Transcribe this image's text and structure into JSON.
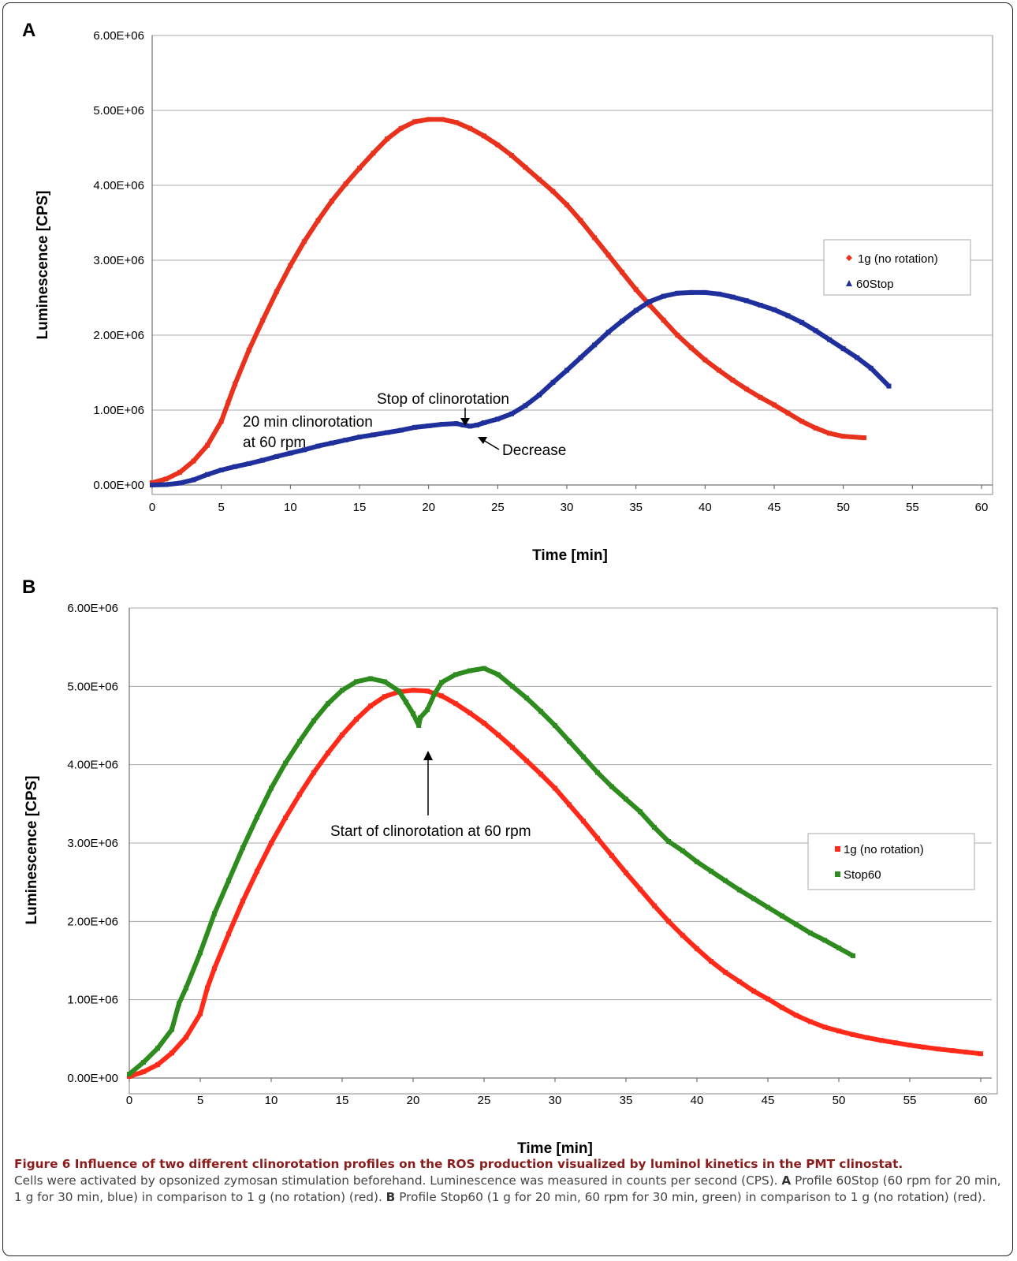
{
  "figure": {
    "caption_title": "Figure 6 Influence of two different clinorotation profiles on the ROS production visualized by luminol kinetics in the PMT clinostat.",
    "caption_p1": "Cells were activated by opsonized zymosan stimulation beforehand. Luminescence was measured in counts per second (CPS). ",
    "caption_a_label": "A",
    "caption_a_text": " Profile 60Stop (60 rpm for 20 min, 1 g for 30 min, blue) in comparison to 1 g (no rotation) (red). ",
    "caption_b_label": "B",
    "caption_b_text": " Profile Stop60 (1 g for 20 min, 60 rpm for 30 min, green) in comparison to 1 g (no rotation) (red)."
  },
  "chart_data": [
    {
      "panel": "A",
      "type": "scatter",
      "xlabel": "Time [min]",
      "ylabel": "Luminescence [CPS]",
      "xlim": [
        0,
        60
      ],
      "ylim": [
        0,
        6000000
      ],
      "xticks": [
        "0",
        "5",
        "10",
        "15",
        "20",
        "25",
        "30",
        "35",
        "40",
        "45",
        "50",
        "55",
        "60"
      ],
      "yticks": [
        "0.00E+00",
        "1.00E+06",
        "2.00E+06",
        "3.00E+06",
        "4.00E+06",
        "5.00E+06",
        "6.00E+06"
      ],
      "grid": "horizontal",
      "legend_position": "right",
      "series": [
        {
          "name": "1g (no rotation)",
          "color": "#e8321e",
          "marker": "diamond",
          "x": [
            0,
            1,
            2,
            3,
            4,
            5,
            5.5,
            6,
            7,
            8,
            9,
            10,
            11,
            12,
            13,
            14,
            15,
            16,
            17,
            18,
            19,
            20,
            21,
            22,
            23,
            24,
            25,
            26,
            27,
            28,
            29,
            30,
            31,
            32,
            33,
            34,
            35,
            36,
            37,
            38,
            39,
            40,
            41,
            42,
            43,
            44,
            45,
            46,
            47,
            48,
            49,
            50,
            51.5
          ],
          "y": [
            30000,
            80000,
            170000,
            320000,
            530000,
            850000,
            1100000,
            1350000,
            1800000,
            2200000,
            2580000,
            2930000,
            3250000,
            3530000,
            3790000,
            4020000,
            4230000,
            4430000,
            4620000,
            4760000,
            4850000,
            4880000,
            4880000,
            4840000,
            4760000,
            4660000,
            4540000,
            4400000,
            4240000,
            4080000,
            3920000,
            3740000,
            3530000,
            3300000,
            3070000,
            2840000,
            2610000,
            2400000,
            2200000,
            2000000,
            1830000,
            1670000,
            1530000,
            1400000,
            1280000,
            1170000,
            1070000,
            960000,
            850000,
            760000,
            690000,
            650000,
            630000
          ]
        },
        {
          "name": "60Stop",
          "color": "#1f2f9c",
          "marker": "triangle",
          "x": [
            0,
            1,
            2,
            3,
            4,
            5,
            6,
            7,
            8,
            9,
            10,
            11,
            12,
            13,
            14,
            15,
            16,
            17,
            18,
            19,
            20,
            21,
            22,
            22.5,
            23,
            23.5,
            24,
            25,
            26,
            27,
            28,
            29,
            30,
            31,
            32,
            33,
            34,
            35,
            36,
            37,
            38,
            39,
            40,
            41,
            42,
            43,
            44,
            45,
            46,
            47,
            48,
            49,
            50,
            51,
            52,
            53.3
          ],
          "y": [
            0,
            5000,
            25000,
            70000,
            140000,
            200000,
            245000,
            285000,
            330000,
            380000,
            425000,
            470000,
            520000,
            560000,
            600000,
            640000,
            670000,
            700000,
            730000,
            770000,
            790000,
            810000,
            820000,
            800000,
            785000,
            800000,
            830000,
            880000,
            950000,
            1060000,
            1200000,
            1370000,
            1530000,
            1700000,
            1870000,
            2040000,
            2190000,
            2330000,
            2450000,
            2520000,
            2560000,
            2570000,
            2570000,
            2550000,
            2510000,
            2460000,
            2400000,
            2340000,
            2260000,
            2170000,
            2060000,
            1940000,
            1820000,
            1700000,
            1560000,
            1320000
          ]
        }
      ],
      "annotations": {
        "clino_line1": "20 min clinorotation",
        "clino_line2": "at 60 rpm",
        "stop": "Stop of clinorotation",
        "decrease": "Decrease"
      }
    },
    {
      "panel": "B",
      "type": "scatter",
      "xlabel": "Time [min]",
      "ylabel": "Luminescence  [CPS]",
      "xlim": [
        0,
        60
      ],
      "ylim": [
        0,
        6000000
      ],
      "xticks": [
        "0",
        "5",
        "10",
        "15",
        "20",
        "25",
        "30",
        "35",
        "40",
        "45",
        "50",
        "55",
        "60"
      ],
      "yticks": [
        "0.00E+00",
        "1.00E+06",
        "2.00E+06",
        "3.00E+06",
        "4.00E+06",
        "5.00E+06",
        "6.00E+06"
      ],
      "grid": "horizontal",
      "legend_position": "right",
      "series": [
        {
          "name": "1g (no rotation)",
          "color": "#ff2a1a",
          "marker": "square",
          "x": [
            0,
            1,
            2,
            3,
            4,
            5,
            5.5,
            6,
            7,
            8,
            9,
            10,
            11,
            12,
            13,
            14,
            15,
            16,
            17,
            18,
            19,
            20,
            21,
            22,
            23,
            24,
            25,
            26,
            27,
            28,
            29,
            30,
            31,
            32,
            33,
            34,
            35,
            36,
            37,
            38,
            39,
            40,
            41,
            42,
            43,
            44,
            45,
            46,
            47,
            48,
            49,
            50,
            51,
            52,
            53,
            54,
            55,
            56,
            57,
            58,
            59,
            60
          ],
          "y": [
            20000,
            80000,
            170000,
            320000,
            520000,
            820000,
            1150000,
            1400000,
            1840000,
            2260000,
            2640000,
            3000000,
            3320000,
            3620000,
            3900000,
            4150000,
            4380000,
            4580000,
            4750000,
            4870000,
            4930000,
            4950000,
            4940000,
            4880000,
            4780000,
            4660000,
            4530000,
            4380000,
            4220000,
            4050000,
            3880000,
            3700000,
            3490000,
            3280000,
            3060000,
            2840000,
            2620000,
            2410000,
            2200000,
            2000000,
            1820000,
            1650000,
            1490000,
            1350000,
            1230000,
            1110000,
            1010000,
            900000,
            800000,
            720000,
            650000,
            600000,
            555000,
            515000,
            480000,
            450000,
            420000,
            395000,
            370000,
            350000,
            330000,
            310000
          ]
        },
        {
          "name": "Stop60",
          "color": "#2e8b1e",
          "marker": "square",
          "x": [
            0,
            1,
            2,
            3,
            3.5,
            4,
            5,
            6,
            7,
            8,
            9,
            10,
            11,
            12,
            13,
            14,
            15,
            16,
            17,
            18,
            19,
            19.5,
            20,
            20.4,
            20.5,
            21,
            21.5,
            22,
            23,
            24,
            25,
            26,
            27,
            28,
            29,
            30,
            31,
            32,
            33,
            34,
            35,
            36,
            37,
            38,
            39,
            40,
            41,
            42,
            43,
            44,
            45,
            46,
            47,
            48,
            49,
            50,
            51
          ],
          "y": [
            50000,
            200000,
            380000,
            620000,
            950000,
            1150000,
            1600000,
            2100000,
            2520000,
            2940000,
            3330000,
            3700000,
            4020000,
            4300000,
            4560000,
            4780000,
            4950000,
            5060000,
            5100000,
            5060000,
            4940000,
            4800000,
            4650000,
            4500000,
            4600000,
            4700000,
            4900000,
            5050000,
            5150000,
            5200000,
            5230000,
            5150000,
            5000000,
            4850000,
            4680000,
            4500000,
            4300000,
            4100000,
            3900000,
            3720000,
            3560000,
            3400000,
            3200000,
            3020000,
            2900000,
            2760000,
            2640000,
            2520000,
            2400000,
            2290000,
            2180000,
            2070000,
            1960000,
            1850000,
            1760000,
            1660000,
            1560000
          ]
        }
      ],
      "annotations": {
        "start": "Start of clinorotation at 60 rpm"
      }
    }
  ]
}
